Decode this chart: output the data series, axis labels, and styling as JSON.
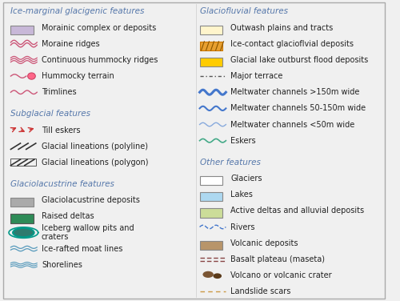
{
  "bg_color": "#f0f0f0",
  "category_color": "#5577aa",
  "text_color": "#222222",
  "categories": {
    "left": [
      {
        "type": "header",
        "label": "Ice-marginal glacigenic features"
      },
      {
        "type": "patch",
        "label": "Morainic complex or deposits",
        "color": "#c8b8d8",
        "edgecolor": "#888888"
      },
      {
        "type": "wavy_pink2",
        "label": "Moraine ridges"
      },
      {
        "type": "wavy_pink3",
        "label": "Continuous hummocky ridges"
      },
      {
        "type": "hummocky",
        "label": "Hummocky terrain"
      },
      {
        "type": "trimline",
        "label": "Trimlines"
      },
      {
        "type": "spacer"
      },
      {
        "type": "header",
        "label": "Subglacial features"
      },
      {
        "type": "till_esker",
        "label": "Till eskers"
      },
      {
        "type": "lineations_poly",
        "label": "Glacial lineations (polyline)"
      },
      {
        "type": "lineations_polygon",
        "label": "Glacial lineations (polygon)"
      },
      {
        "type": "spacer"
      },
      {
        "type": "header",
        "label": "Glaciolacustrine features"
      },
      {
        "type": "patch",
        "label": "Glaciolacustrine deposits",
        "color": "#aaaaaa",
        "edgecolor": "#888888"
      },
      {
        "type": "patch",
        "label": "Raised deltas",
        "color": "#2e8b57",
        "edgecolor": "#555555"
      },
      {
        "type": "iceberg",
        "label": "Iceberg wallow pits and\ncraters"
      },
      {
        "type": "moat_lines",
        "label": "Ice-rafted moat lines"
      },
      {
        "type": "shorelines",
        "label": "Shorelines"
      }
    ],
    "right": [
      {
        "type": "header",
        "label": "Glaciofluvial features"
      },
      {
        "type": "patch",
        "label": "Outwash plains and tracts",
        "color": "#fff5cc",
        "edgecolor": "#888888"
      },
      {
        "type": "patch_hatched",
        "label": "Ice-contact glacioflvial deposits",
        "color": "#e8a030",
        "edgecolor": "#cc7700"
      },
      {
        "type": "patch",
        "label": "Glacial lake outburst flood deposits",
        "color": "#ffcc00",
        "edgecolor": "#888888"
      },
      {
        "type": "major_terrace",
        "label": "Major terrace"
      },
      {
        "type": "meltwater_lg",
        "label": "Meltwater channels >150m wide"
      },
      {
        "type": "meltwater_md",
        "label": "Meltwater channels 50-150m wide"
      },
      {
        "type": "meltwater_sm",
        "label": "Meltwater channels <50m wide"
      },
      {
        "type": "esker_green",
        "label": "Eskers"
      },
      {
        "type": "spacer"
      },
      {
        "type": "header",
        "label": "Other features"
      },
      {
        "type": "patch",
        "label": "Glaciers",
        "color": "#ffffff",
        "edgecolor": "#888888"
      },
      {
        "type": "patch",
        "label": "Lakes",
        "color": "#add8f0",
        "edgecolor": "#888888"
      },
      {
        "type": "patch",
        "label": "Active deltas and alluvial deposits",
        "color": "#ccdd99",
        "edgecolor": "#888888"
      },
      {
        "type": "river",
        "label": "Rivers"
      },
      {
        "type": "patch",
        "label": "Volcanic deposits",
        "color": "#b8956a",
        "edgecolor": "#888888"
      },
      {
        "type": "basalt",
        "label": "Basalt plateau (maseta)"
      },
      {
        "type": "volcano",
        "label": "Volcano or volcanic crater"
      },
      {
        "type": "landslide",
        "label": "Landslide scars"
      }
    ]
  }
}
